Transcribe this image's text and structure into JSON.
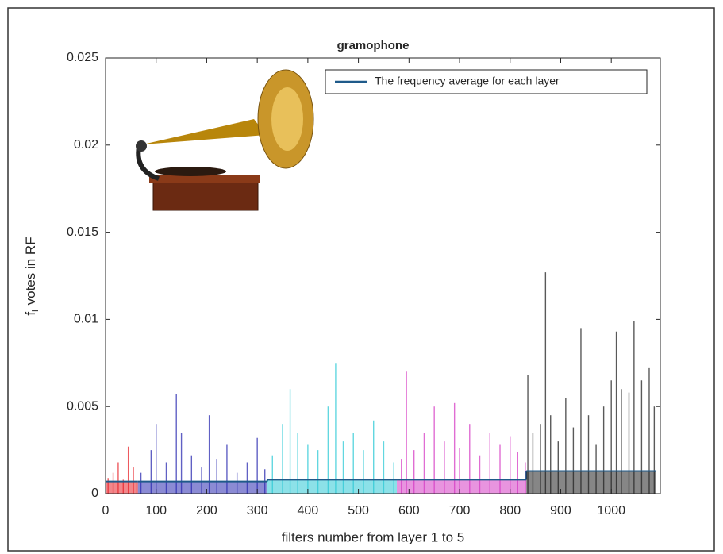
{
  "chart_data": {
    "type": "stem",
    "title": "gramophone",
    "x_label": "filters number from layer 1 to 5",
    "y_label": "f",
    "y_label_sub": "i",
    "y_label_rest": "votes in RF",
    "xlim": [
      0,
      1097
    ],
    "ylim": [
      0,
      0.025
    ],
    "xticks": [
      0,
      100,
      200,
      300,
      400,
      500,
      600,
      700,
      800,
      900,
      1000
    ],
    "yticks": [
      0,
      0.005,
      0.01,
      0.015,
      0.02,
      0.025
    ],
    "series": [
      {
        "color": "#e8232a",
        "x": [
          5,
          15,
          25,
          35,
          45,
          55,
          62
        ],
        "values": [
          0.0009,
          0.0012,
          0.0018,
          0.0008,
          0.0027,
          0.0015,
          0.0006
        ]
      },
      {
        "color": "#2b2bb0",
        "x": [
          70,
          90,
          100,
          120,
          140,
          150,
          170,
          190,
          205,
          220,
          240,
          260,
          280,
          300,
          315
        ],
        "values": [
          0.0012,
          0.0025,
          0.004,
          0.0018,
          0.0057,
          0.0035,
          0.0022,
          0.0015,
          0.0045,
          0.002,
          0.0028,
          0.0012,
          0.0018,
          0.0032,
          0.0014
        ]
      },
      {
        "color": "#2ec9d6",
        "x": [
          330,
          350,
          365,
          380,
          400,
          420,
          440,
          455,
          470,
          490,
          510,
          530,
          550,
          570
        ],
        "values": [
          0.0022,
          0.004,
          0.006,
          0.0035,
          0.0028,
          0.0025,
          0.005,
          0.0075,
          0.003,
          0.0035,
          0.0025,
          0.0042,
          0.003,
          0.0018
        ]
      },
      {
        "color": "#d63cc4",
        "x": [
          585,
          595,
          610,
          630,
          650,
          670,
          690,
          700,
          720,
          740,
          760,
          780,
          800,
          815,
          830
        ],
        "values": [
          0.002,
          0.007,
          0.0025,
          0.0035,
          0.005,
          0.003,
          0.0052,
          0.0026,
          0.004,
          0.0022,
          0.0035,
          0.0028,
          0.0033,
          0.0024,
          0.0018
        ]
      },
      {
        "color": "#222222",
        "x": [
          835,
          845,
          860,
          870,
          880,
          895,
          910,
          925,
          940,
          955,
          970,
          985,
          1000,
          1010,
          1020,
          1035,
          1045,
          1060,
          1075,
          1085
        ],
        "values": [
          0.0068,
          0.0035,
          0.004,
          0.0127,
          0.0045,
          0.003,
          0.0055,
          0.0038,
          0.0095,
          0.0045,
          0.0028,
          0.005,
          0.0065,
          0.0093,
          0.006,
          0.0058,
          0.0099,
          0.0065,
          0.0072,
          0.005
        ]
      }
    ],
    "average": {
      "name": "The frequency average for each layer",
      "color": "#1f5a8a",
      "layer_bounds": [
        0,
        64,
        320,
        576,
        832,
        1088
      ],
      "values": [
        0.0007,
        0.0007,
        0.0008,
        0.0008,
        0.0013
      ]
    },
    "legend": "upper right"
  }
}
